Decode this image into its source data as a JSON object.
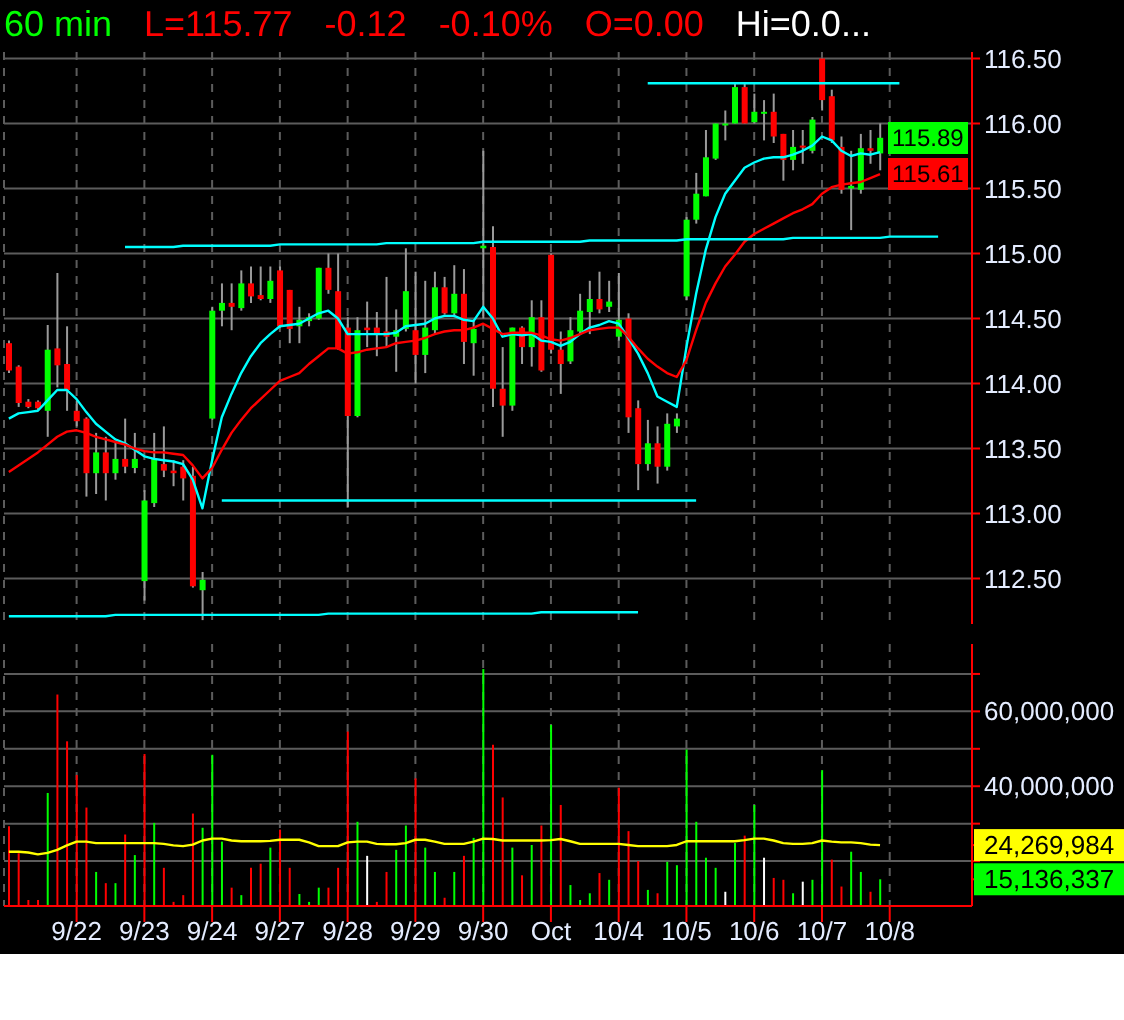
{
  "chart_data": [
    {
      "type": "candlestick",
      "title": "60 min",
      "annotations": [
        "L=115.77",
        "-0.12",
        "-0.10%",
        "O=0.00",
        "Hi=0.0..."
      ],
      "categories": [
        null,
        null,
        null,
        null,
        null,
        null,
        null,
        null,
        null,
        null,
        null,
        null,
        null,
        null,
        null,
        null,
        null,
        null,
        null,
        null,
        null,
        null,
        null,
        null,
        null,
        null,
        null,
        null,
        null,
        null,
        null,
        null,
        null,
        null,
        null,
        null,
        null,
        null,
        null,
        null,
        null,
        null,
        null,
        null,
        null,
        null,
        null,
        null,
        null,
        null,
        null,
        null,
        null,
        null,
        null,
        null,
        null,
        null,
        null,
        null,
        null,
        null,
        null,
        null,
        null,
        null,
        null,
        null,
        null,
        null,
        null,
        null,
        null,
        null,
        null,
        null,
        null,
        null,
        null,
        null,
        null,
        null,
        null,
        null,
        null,
        null,
        null,
        null,
        null,
        null,
        null,
        null,
        null,
        null,
        null,
        null,
        null,
        null,
        null,
        null
      ],
      "ohlc": [
        [
          114.31,
          114.33,
          114.08,
          114.1
        ],
        [
          114.13,
          114.14,
          113.82,
          113.85
        ],
        [
          113.86,
          113.88,
          113.81,
          113.82
        ],
        [
          113.86,
          113.87,
          113.79,
          113.81
        ],
        [
          113.79,
          114.45,
          113.59,
          114.26
        ],
        [
          114.27,
          114.85,
          113.97,
          114.14
        ],
        [
          114.15,
          114.44,
          113.79,
          113.95
        ],
        [
          113.79,
          113.87,
          113.67,
          113.71
        ],
        [
          113.73,
          113.74,
          113.13,
          113.31
        ],
        [
          113.31,
          113.62,
          113.15,
          113.47
        ],
        [
          113.47,
          113.59,
          113.1,
          113.31
        ],
        [
          113.31,
          113.56,
          113.26,
          113.42
        ],
        [
          113.42,
          113.73,
          113.31,
          113.36
        ],
        [
          113.35,
          113.62,
          113.31,
          113.42
        ],
        [
          112.48,
          113.18,
          112.33,
          113.1
        ],
        [
          113.08,
          113.62,
          113.05,
          113.42
        ],
        [
          113.38,
          113.67,
          113.28,
          113.33
        ],
        [
          113.33,
          113.41,
          113.21,
          113.31
        ],
        [
          113.36,
          113.41,
          113.1,
          113.27
        ],
        [
          113.29,
          113.36,
          112.43,
          112.44
        ],
        [
          112.41,
          112.55,
          112.18,
          112.49
        ],
        [
          113.73,
          114.59,
          113.72,
          114.56
        ],
        [
          114.56,
          114.77,
          114.44,
          114.62
        ],
        [
          114.62,
          114.77,
          114.41,
          114.59
        ],
        [
          114.58,
          114.87,
          114.56,
          114.77
        ],
        [
          114.77,
          114.9,
          114.62,
          114.67
        ],
        [
          114.68,
          114.9,
          114.64,
          114.65
        ],
        [
          114.65,
          114.9,
          114.62,
          114.79
        ],
        [
          114.87,
          114.9,
          114.43,
          114.44
        ],
        [
          114.72,
          114.72,
          114.31,
          114.42
        ],
        [
          114.44,
          114.59,
          114.31,
          114.49
        ],
        [
          114.48,
          114.54,
          114.44,
          114.51
        ],
        [
          114.5,
          114.89,
          114.49,
          114.89
        ],
        [
          114.89,
          115.0,
          114.69,
          114.72
        ],
        [
          114.71,
          115.0,
          114.26,
          114.27
        ],
        [
          114.43,
          114.51,
          113.05,
          113.75
        ],
        [
          113.75,
          114.51,
          113.74,
          114.41
        ],
        [
          114.43,
          114.63,
          114.28,
          114.41
        ],
        [
          114.43,
          114.55,
          114.21,
          114.38
        ],
        [
          114.4,
          114.82,
          114.28,
          114.36
        ],
        [
          114.36,
          114.57,
          114.09,
          114.41
        ],
        [
          114.42,
          115.04,
          114.4,
          114.71
        ],
        [
          114.41,
          114.86,
          114.0,
          114.22
        ],
        [
          114.22,
          114.79,
          114.08,
          114.43
        ],
        [
          114.41,
          114.86,
          114.38,
          114.74
        ],
        [
          114.74,
          114.82,
          114.53,
          114.54
        ],
        [
          114.54,
          114.91,
          114.51,
          114.69
        ],
        [
          114.69,
          114.88,
          114.15,
          114.32
        ],
        [
          114.31,
          114.49,
          114.06,
          114.42
        ],
        [
          115.04,
          115.79,
          114.5,
          115.06
        ],
        [
          115.05,
          115.21,
          113.82,
          113.96
        ],
        [
          113.96,
          114.28,
          113.59,
          113.83
        ],
        [
          113.83,
          114.43,
          113.79,
          114.43
        ],
        [
          114.43,
          114.44,
          114.15,
          114.28
        ],
        [
          114.28,
          114.64,
          114.13,
          114.51
        ],
        [
          114.51,
          114.64,
          114.09,
          114.1
        ],
        [
          114.99,
          115.0,
          114.23,
          114.26
        ],
        [
          114.26,
          114.4,
          113.92,
          114.15
        ],
        [
          114.17,
          114.51,
          114.15,
          114.41
        ],
        [
          114.4,
          114.69,
          114.38,
          114.56
        ],
        [
          114.55,
          114.79,
          114.38,
          114.65
        ],
        [
          114.65,
          114.86,
          114.54,
          114.57
        ],
        [
          114.59,
          114.79,
          114.55,
          114.63
        ],
        [
          114.36,
          114.85,
          114.33,
          114.49
        ],
        [
          114.5,
          114.54,
          113.62,
          113.74
        ],
        [
          113.81,
          113.87,
          113.18,
          113.38
        ],
        [
          113.38,
          113.72,
          113.33,
          113.54
        ],
        [
          113.54,
          113.67,
          113.23,
          113.36
        ],
        [
          113.36,
          113.77,
          113.33,
          113.69
        ],
        [
          113.67,
          113.77,
          113.62,
          113.73
        ],
        [
          114.67,
          115.28,
          114.64,
          115.26
        ],
        [
          115.26,
          115.62,
          115.23,
          115.46
        ],
        [
          115.44,
          115.95,
          115.44,
          115.74
        ],
        [
          115.73,
          116.0,
          115.72,
          116.0
        ],
        [
          115.99,
          116.1,
          115.87,
          116.0
        ],
        [
          116.0,
          116.31,
          116.0,
          116.28
        ],
        [
          116.28,
          116.31,
          116.0,
          116.0
        ],
        [
          116.01,
          116.23,
          116.0,
          116.09
        ],
        [
          116.08,
          116.18,
          115.87,
          116.09
        ],
        [
          116.09,
          116.23,
          115.85,
          115.9
        ],
        [
          115.92,
          115.92,
          115.56,
          115.72
        ],
        [
          115.72,
          115.95,
          115.64,
          115.82
        ],
        [
          115.83,
          115.95,
          115.69,
          115.82
        ],
        [
          115.79,
          116.05,
          115.77,
          116.03
        ],
        [
          116.5,
          116.5,
          116.1,
          116.18
        ],
        [
          116.21,
          116.26,
          115.85,
          115.87
        ],
        [
          115.82,
          115.9,
          115.46,
          115.49
        ],
        [
          115.5,
          115.79,
          115.18,
          115.52
        ],
        [
          115.49,
          115.92,
          115.46,
          115.81
        ],
        [
          115.81,
          115.95,
          115.69,
          115.79
        ],
        [
          115.77,
          116.0,
          115.64,
          115.89
        ],
        null,
        null,
        null,
        null,
        null,
        null,
        null,
        null,
        null
      ],
      "value_labels": [
        null,
        null,
        null,
        null,
        null,
        null,
        null,
        null,
        null,
        null,
        null,
        null,
        null,
        null,
        null,
        null,
        null,
        null,
        null,
        null,
        null,
        null,
        null,
        null,
        null,
        null,
        null,
        null,
        null,
        null,
        null,
        null,
        null,
        null,
        null,
        null,
        null,
        null,
        null,
        null,
        null,
        null,
        null,
        null,
        null,
        null,
        null,
        null,
        null,
        null,
        null,
        null,
        null,
        null,
        null,
        null,
        null,
        null,
        null,
        null,
        null,
        null,
        null,
        null,
        null,
        null,
        null,
        null,
        null,
        null,
        null,
        null,
        null,
        null,
        null,
        null,
        null,
        null,
        null,
        null,
        null,
        null,
        null,
        null,
        null,
        null,
        null,
        null,
        null,
        null,
        "115.89",
        null,
        null,
        null,
        null,
        null,
        null,
        null,
        null,
        null
      ],
      "colors": [
        "#ff0000",
        "#ff0000",
        "#ff0000",
        "#ff0000",
        "#00ff00",
        "#ff0000",
        "#ff0000",
        "#ff0000",
        "#ff0000",
        "#00ff00",
        "#ff0000",
        "#00ff00",
        "#ff0000",
        "#00ff00",
        "#00ff00",
        "#00ff00",
        "#ff0000",
        "#ff0000",
        "#ff0000",
        "#ff0000",
        "#00ff00",
        "#00ff00",
        "#00ff00",
        "#ff0000",
        "#00ff00",
        "#ff0000",
        "#ff0000",
        "#00ff00",
        "#ff0000",
        "#ff0000",
        "#00ff00",
        "#00ff00",
        "#00ff00",
        "#ff0000",
        "#ff0000",
        "#ff0000",
        "#00ff00",
        "#ff0000",
        "#ff0000",
        "#ff0000",
        "#00ff00",
        "#00ff00",
        "#ff0000",
        "#00ff00",
        "#00ff00",
        "#ff0000",
        "#00ff00",
        "#ff0000",
        "#00ff00",
        "#00ff00",
        "#ff0000",
        "#ff0000",
        "#00ff00",
        "#ff0000",
        "#00ff00",
        "#ff0000",
        "#ff0000",
        "#ff0000",
        "#00ff00",
        "#00ff00",
        "#00ff00",
        "#ff0000",
        "#00ff00",
        "#00ff00",
        "#ff0000",
        "#ff0000",
        "#00ff00",
        "#ff0000",
        "#00ff00",
        "#00ff00",
        "#00ff00",
        "#00ff00",
        "#00ff00",
        "#00ff00",
        "#00ff00",
        "#00ff00",
        "#ff0000",
        "#00ff00",
        "#00ff00",
        "#ff0000",
        "#ff0000",
        "#00ff00",
        "#ff0000",
        "#00ff00",
        "#ff0000",
        "#ff0000",
        "#ff0000",
        "#00ff00",
        "#00ff00",
        "#ff0000",
        "#00ff00",
        null,
        null,
        null,
        null,
        null,
        null,
        null,
        null,
        null
      ],
      "series": [
        {
          "type": "line",
          "color": "#00ffff",
          "values": [
            113.73,
            113.77,
            113.78,
            113.79,
            113.87,
            113.95,
            113.95,
            113.88,
            113.78,
            113.69,
            113.63,
            113.57,
            113.54,
            113.49,
            113.44,
            113.42,
            113.41,
            113.4,
            113.38,
            113.26,
            113.04,
            113.41,
            113.74,
            113.92,
            114.08,
            114.21,
            114.31,
            114.38,
            114.44,
            114.45,
            114.46,
            114.5,
            114.54,
            114.56,
            114.5,
            114.38,
            114.38,
            114.38,
            114.38,
            114.38,
            114.39,
            114.44,
            114.45,
            114.46,
            114.5,
            114.52,
            114.52,
            114.49,
            114.48,
            114.59,
            114.5,
            114.36,
            114.38,
            114.37,
            114.38,
            114.33,
            114.32,
            114.29,
            114.32,
            114.38,
            114.43,
            114.45,
            114.48,
            114.46,
            114.35,
            114.23,
            114.08,
            113.9,
            113.86,
            113.82,
            114.28,
            114.69,
            115.03,
            115.28,
            115.46,
            115.56,
            115.66,
            115.7,
            115.73,
            115.74,
            115.74,
            115.76,
            115.79,
            115.83,
            115.9,
            115.87,
            115.79,
            115.75,
            115.77,
            115.76,
            115.78,
            null,
            null,
            null,
            null,
            null,
            null,
            null,
            null,
            null
          ]
        },
        {
          "type": "line",
          "color": "#ff0000",
          "values": [
            113.32,
            113.37,
            113.42,
            113.47,
            113.53,
            113.59,
            113.63,
            113.64,
            113.62,
            113.59,
            113.57,
            113.55,
            113.53,
            113.5,
            113.48,
            113.47,
            113.47,
            113.46,
            113.45,
            113.37,
            113.27,
            113.35,
            113.49,
            113.62,
            113.72,
            113.81,
            113.88,
            113.95,
            114.02,
            114.05,
            114.08,
            114.15,
            114.21,
            114.27,
            114.27,
            114.23,
            114.24,
            114.26,
            114.27,
            114.28,
            114.31,
            114.32,
            114.33,
            114.35,
            114.38,
            114.4,
            114.41,
            114.41,
            114.43,
            114.46,
            114.42,
            114.38,
            114.39,
            114.39,
            114.39,
            114.37,
            114.34,
            114.33,
            114.35,
            114.38,
            114.41,
            114.42,
            114.43,
            114.43,
            114.36,
            114.27,
            114.19,
            114.13,
            114.08,
            114.05,
            114.18,
            114.41,
            114.62,
            114.77,
            114.9,
            114.99,
            115.09,
            115.15,
            115.19,
            115.23,
            115.27,
            115.31,
            115.34,
            115.38,
            115.46,
            115.51,
            115.53,
            115.54,
            115.55,
            115.58,
            115.61,
            null,
            null,
            null,
            null,
            null,
            null,
            null,
            null,
            null
          ],
          "value_labels": [
            null,
            null,
            null,
            null,
            null,
            null,
            null,
            null,
            null,
            null,
            null,
            null,
            null,
            null,
            null,
            null,
            null,
            null,
            null,
            null,
            null,
            null,
            null,
            null,
            null,
            null,
            null,
            null,
            null,
            null,
            null,
            null,
            null,
            null,
            null,
            null,
            null,
            null,
            null,
            null,
            null,
            null,
            null,
            null,
            null,
            null,
            null,
            null,
            null,
            null,
            null,
            null,
            null,
            null,
            null,
            null,
            null,
            null,
            null,
            null,
            null,
            null,
            null,
            null,
            null,
            null,
            null,
            null,
            null,
            null,
            null,
            null,
            null,
            null,
            null,
            null,
            null,
            null,
            null,
            null,
            null,
            null,
            null,
            null,
            null,
            null,
            null,
            null,
            null,
            null,
            "115.61",
            null,
            null,
            null,
            null,
            null,
            null,
            null,
            null,
            null
          ]
        },
        {
          "type": "line",
          "color": "#00ffff",
          "values": [
            null,
            null,
            null,
            null,
            null,
            null,
            null,
            null,
            null,
            null,
            null,
            null,
            115.05,
            115.05,
            115.05,
            115.05,
            115.05,
            115.05,
            115.06,
            115.06,
            115.06,
            115.06,
            115.06,
            115.06,
            115.06,
            115.06,
            115.06,
            115.06,
            115.07,
            115.07,
            115.07,
            115.07,
            115.07,
            115.07,
            115.07,
            115.07,
            115.07,
            115.07,
            115.07,
            115.08,
            115.08,
            115.08,
            115.08,
            115.08,
            115.08,
            115.08,
            115.08,
            115.08,
            115.08,
            115.09,
            115.09,
            115.09,
            115.09,
            115.09,
            115.09,
            115.09,
            115.09,
            115.09,
            115.09,
            115.09,
            115.1,
            115.1,
            115.1,
            115.1,
            115.1,
            115.1,
            115.1,
            115.1,
            115.1,
            115.1,
            115.11,
            115.11,
            115.11,
            115.11,
            115.11,
            115.11,
            115.11,
            115.11,
            115.11,
            115.11,
            115.11,
            115.12,
            115.12,
            115.12,
            115.12,
            115.12,
            115.12,
            115.12,
            115.12,
            115.12,
            115.12,
            115.13,
            115.13,
            115.13,
            115.13,
            115.13,
            115.13,
            null,
            null,
            null
          ]
        },
        {
          "type": "line",
          "color": "#00ffff",
          "values": [
            null,
            null,
            null,
            null,
            null,
            null,
            null,
            null,
            null,
            null,
            null,
            null,
            null,
            null,
            null,
            null,
            null,
            null,
            null,
            null,
            null,
            null,
            null,
            null,
            null,
            null,
            null,
            null,
            null,
            null,
            null,
            null,
            null,
            null,
            null,
            null,
            null,
            null,
            null,
            null,
            null,
            null,
            null,
            null,
            null,
            null,
            null,
            null,
            null,
            null,
            null,
            null,
            null,
            null,
            null,
            null,
            null,
            null,
            null,
            null,
            null,
            null,
            null,
            null,
            null,
            null,
            116.31,
            116.31,
            116.31,
            116.31,
            116.31,
            116.31,
            116.31,
            116.31,
            116.31,
            116.31,
            116.31,
            116.31,
            116.31,
            116.31,
            116.31,
            116.31,
            116.31,
            116.31,
            116.31,
            116.31,
            116.31,
            116.31,
            116.31,
            116.31,
            116.31,
            116.31,
            116.31,
            null,
            null,
            null,
            null,
            null,
            null,
            null
          ]
        },
        {
          "type": "line",
          "color": "#00ffff",
          "values": [
            null,
            null,
            null,
            null,
            null,
            null,
            null,
            null,
            null,
            null,
            null,
            null,
            null,
            null,
            null,
            null,
            null,
            null,
            null,
            null,
            null,
            null,
            113.1,
            113.1,
            113.1,
            113.1,
            113.1,
            113.1,
            113.1,
            113.1,
            113.1,
            113.1,
            113.1,
            113.1,
            113.1,
            113.1,
            113.1,
            113.1,
            113.1,
            113.1,
            113.1,
            113.1,
            113.1,
            113.1,
            113.1,
            113.1,
            113.1,
            113.1,
            113.1,
            113.1,
            113.1,
            113.1,
            113.1,
            113.1,
            113.1,
            113.1,
            113.1,
            113.1,
            113.1,
            113.1,
            113.1,
            113.1,
            113.1,
            113.1,
            113.1,
            113.1,
            113.1,
            113.1,
            113.1,
            113.1,
            113.1,
            113.1,
            null,
            null,
            null,
            null,
            null,
            null,
            null,
            null,
            null,
            null,
            null,
            null,
            null,
            null,
            null,
            null,
            null,
            null,
            null,
            null,
            null,
            null,
            null,
            null,
            null,
            null,
            null,
            null
          ]
        },
        {
          "type": "line",
          "color": "#00ffff",
          "values": [
            112.21,
            112.21,
            112.21,
            112.21,
            112.21,
            112.21,
            112.21,
            112.21,
            112.21,
            112.21,
            112.21,
            112.22,
            112.22,
            112.22,
            112.22,
            112.22,
            112.22,
            112.22,
            112.22,
            112.22,
            112.22,
            112.22,
            112.22,
            112.22,
            112.22,
            112.22,
            112.22,
            112.22,
            112.22,
            112.22,
            112.22,
            112.22,
            112.22,
            112.23,
            112.23,
            112.23,
            112.23,
            112.23,
            112.23,
            112.23,
            112.23,
            112.23,
            112.23,
            112.23,
            112.23,
            112.23,
            112.23,
            112.23,
            112.23,
            112.23,
            112.23,
            112.23,
            112.23,
            112.23,
            112.23,
            112.24,
            112.24,
            112.24,
            112.24,
            112.24,
            112.24,
            112.24,
            112.24,
            112.24,
            112.24,
            112.24,
            null,
            null,
            null,
            null,
            null,
            null,
            null,
            null,
            null,
            null,
            null,
            null,
            null,
            null,
            null,
            null,
            null,
            null,
            null,
            null,
            null,
            null,
            null,
            null,
            null,
            null,
            null,
            null,
            null,
            null,
            null,
            null,
            null,
            null
          ]
        }
      ],
      "ylim": [
        112.15,
        116.55
      ],
      "yticks": [
        {
          "value": 112.5,
          "label": "112.50"
        },
        {
          "value": 113,
          "label": "113.00"
        },
        {
          "value": 113.5,
          "label": "113.50"
        },
        {
          "value": 114,
          "label": "114.00"
        },
        {
          "value": 114.5,
          "label": "114.50"
        },
        {
          "value": 115,
          "label": "115.00"
        },
        {
          "value": 115.5,
          "label": "115.50"
        },
        {
          "value": 116,
          "label": "116.00"
        },
        {
          "value": 116.5,
          "label": "116.50"
        }
      ],
      "grid": true,
      "tick_labels": "y"
    },
    {
      "type": "bar",
      "categories": [
        null,
        null,
        null,
        null,
        null,
        null,
        null,
        "9/22",
        null,
        null,
        null,
        null,
        null,
        null,
        "9/23",
        null,
        null,
        null,
        null,
        null,
        null,
        "9/24",
        null,
        null,
        null,
        null,
        null,
        null,
        "9/27",
        null,
        null,
        null,
        null,
        null,
        null,
        "9/28",
        null,
        null,
        null,
        null,
        null,
        null,
        "9/29",
        null,
        null,
        null,
        null,
        null,
        null,
        "9/30",
        null,
        null,
        null,
        null,
        null,
        null,
        "Oct",
        null,
        null,
        null,
        null,
        null,
        null,
        "10/4",
        null,
        null,
        null,
        null,
        null,
        null,
        "10/5",
        null,
        null,
        null,
        null,
        null,
        null,
        "10/6",
        null,
        null,
        null,
        null,
        null,
        null,
        "10/7",
        null,
        null,
        null,
        null,
        null,
        null,
        "10/8",
        null,
        null,
        null,
        null,
        null,
        null,
        null,
        null
      ],
      "series": [
        {
          "type": "bar",
          "values": [
            29300000,
            22100000,
            9600000,
            9600000,
            38200000,
            64500000,
            52000000,
            43000000,
            34300000,
            17100000,
            14100000,
            14100000,
            27100000,
            21600000,
            48600000,
            30200000,
            18200000,
            9100000,
            10900000,
            32700000,
            28900000,
            48400000,
            25200000,
            12900000,
            10900000,
            18200000,
            19300000,
            23600000,
            28400000,
            18200000,
            11200000,
            9100000,
            12900000,
            12900000,
            18200000,
            54600000,
            30500000,
            21400000,
            9100000,
            17100000,
            23000000,
            29500000,
            42100000,
            23600000,
            17100000,
            10200000,
            17100000,
            21400000,
            26200000,
            71300000,
            51100000,
            37000000,
            23600000,
            16200000,
            24300000,
            29500000,
            56400000,
            35000000,
            13600000,
            9600000,
            11400000,
            16800000,
            15000000,
            39600000,
            28000000,
            20000000,
            12300000,
            11400000,
            19800000,
            18900000,
            49800000,
            30500000,
            20900000,
            18200000,
            11800000,
            24800000,
            26800000,
            35000000,
            20900000,
            15500000,
            15000000,
            11400000,
            14500000,
            15000000,
            44300000,
            20400000,
            13200000,
            22500000,
            17100000,
            11800000,
            15136337,
            null,
            null,
            null,
            null,
            null,
            null,
            null,
            null,
            null
          ],
          "colors": [
            "#ff0000",
            "#ff0000",
            "#ff0000",
            "#ff0000",
            "#00ff00",
            "#ff0000",
            "#ff0000",
            "#ff0000",
            "#ff0000",
            "#00ff00",
            "#ff0000",
            "#00ff00",
            "#ff0000",
            "#00ff00",
            "#ff0000",
            "#00ff00",
            "#ff0000",
            "#ff0000",
            "#ff0000",
            "#ff0000",
            "#00ff00",
            "#00ff00",
            "#00ff00",
            "#ff0000",
            "#00ff00",
            "#ff0000",
            "#ff0000",
            "#00ff00",
            "#ff0000",
            "#ff0000",
            "#00ff00",
            "#00ff00",
            "#00ff00",
            "#ff0000",
            "#ff0000",
            "#ff0000",
            "#00ff00",
            "#ffffff",
            "#ff0000",
            "#ff0000",
            "#00ff00",
            "#00ff00",
            "#ff0000",
            "#00ff00",
            "#00ff00",
            "#ff0000",
            "#00ff00",
            "#ff0000",
            "#00ff00",
            "#00ff00",
            "#ff0000",
            "#ff0000",
            "#00ff00",
            "#ff0000",
            "#00ff00",
            "#ff0000",
            "#00ff00",
            "#ff0000",
            "#00ff00",
            "#00ff00",
            "#00ff00",
            "#ff0000",
            "#00ff00",
            "#ff0000",
            "#ff0000",
            "#ff0000",
            "#00ff00",
            "#ff0000",
            "#00ff00",
            "#00ff00",
            "#00ff00",
            "#00ff00",
            "#00ff00",
            "#00ff00",
            "#ffffff",
            "#00ff00",
            "#ff0000",
            "#00ff00",
            "#ffffff",
            "#ff0000",
            "#ff0000",
            "#00ff00",
            "#ffffff",
            "#00ff00",
            "#00ff00",
            "#ff0000",
            "#ff0000",
            "#00ff00",
            "#00ff00",
            "#ff0000",
            "#00ff00",
            null,
            null,
            null,
            null,
            null,
            null,
            null,
            null,
            null
          ]
        },
        {
          "type": "line",
          "color": "#ffff00",
          "values": [
            22500000,
            22500000,
            22300000,
            21800000,
            22200000,
            23000000,
            24200000,
            25200000,
            25200000,
            24800000,
            24800000,
            24800000,
            24800000,
            24800000,
            24800000,
            24800000,
            24600000,
            24200000,
            24000000,
            24400000,
            25500000,
            26000000,
            26000000,
            25500000,
            25300000,
            25300000,
            25300000,
            25400000,
            25700000,
            25700000,
            25700000,
            25000000,
            24000000,
            24000000,
            24000000,
            25000000,
            25200000,
            25200000,
            24600000,
            24500000,
            24500000,
            24800000,
            25700000,
            25700000,
            25200000,
            24600000,
            24600000,
            24600000,
            25200000,
            26000000,
            25900000,
            25500000,
            25500000,
            25500000,
            25500000,
            25500000,
            25600000,
            25900000,
            25300000,
            24600000,
            24600000,
            24600000,
            24600000,
            24600000,
            24300000,
            24000000,
            24000000,
            24000000,
            24000000,
            24300000,
            25300000,
            25300000,
            25300000,
            25300000,
            25300000,
            25300000,
            25600000,
            26000000,
            26000000,
            25500000,
            24800000,
            24600000,
            24600000,
            24800000,
            25500000,
            25200000,
            25000000,
            25000000,
            24800000,
            24400000,
            24269984,
            null,
            null,
            null,
            null,
            null,
            null,
            null,
            null,
            null
          ]
        }
      ],
      "ylim": [
        8000000,
        78000000
      ],
      "yticks": [
        {
          "value": 15136337,
          "label": "15,136,337"
        },
        {
          "value": 20000000,
          "label": null
        },
        {
          "value": 24269984,
          "label": "24,269,984"
        },
        {
          "value": 30000000,
          "label": null
        },
        {
          "value": 40000000,
          "label": "40,000,000"
        },
        {
          "value": 50000000,
          "label": null
        },
        {
          "value": 60000000,
          "label": "60,000,000"
        },
        {
          "value": 70000000,
          "label": null
        }
      ],
      "grid": true
    }
  ]
}
